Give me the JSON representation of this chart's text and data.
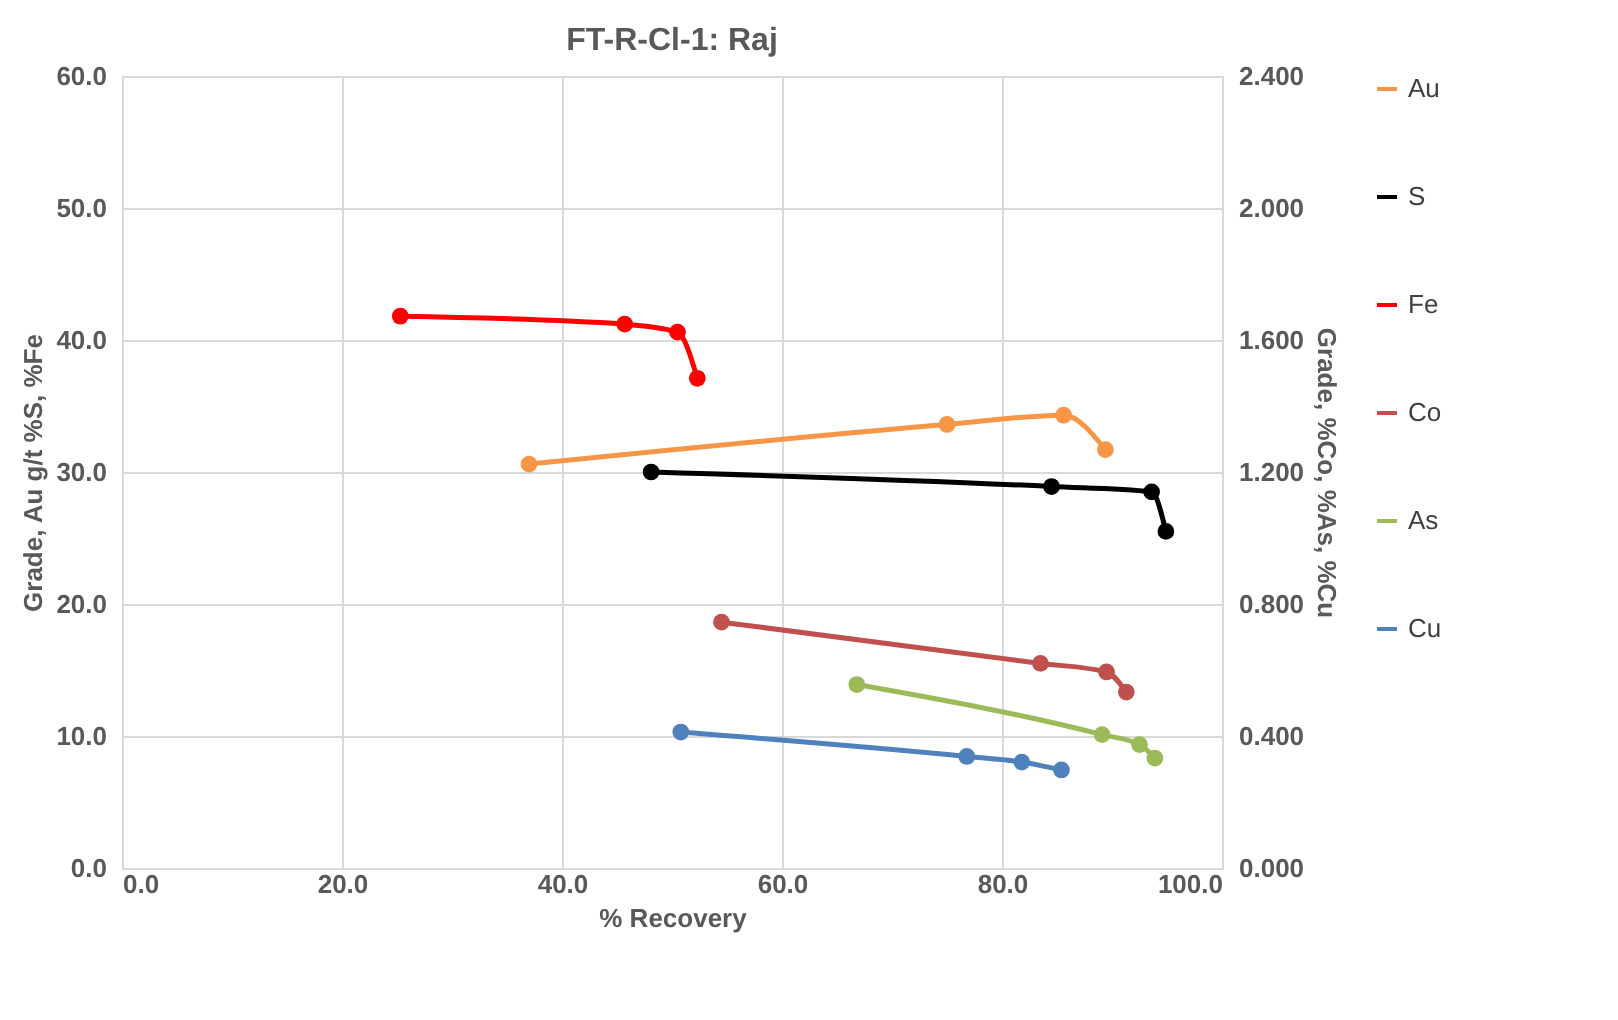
{
  "chart_data": {
    "type": "line",
    "title": "FT-R-Cl-1: Raj",
    "xlabel": "% Recovery",
    "ylabel": "Grade,  Au g/t  %S,  %Fe",
    "y2label": "Grade,  %Co,  %As,  %Cu",
    "xlim": [
      0,
      100
    ],
    "xticks": [
      {
        "value": 0,
        "label": "0.0"
      },
      {
        "value": 20,
        "label": "20.0"
      },
      {
        "value": 40,
        "label": "40.0"
      },
      {
        "value": 60,
        "label": "60.0"
      },
      {
        "value": 80,
        "label": "80.0"
      },
      {
        "value": 100,
        "label": "100.0"
      }
    ],
    "ylim": [
      0,
      60
    ],
    "yticks": [
      {
        "value": 0,
        "label": "0.0"
      },
      {
        "value": 10,
        "label": "10.0"
      },
      {
        "value": 20,
        "label": "20.0"
      },
      {
        "value": 30,
        "label": "30.0"
      },
      {
        "value": 40,
        "label": "40.0"
      },
      {
        "value": 50,
        "label": "50.0"
      },
      {
        "value": 60,
        "label": "60.0"
      }
    ],
    "y2lim": [
      0,
      2.4
    ],
    "y2ticks": [
      {
        "value": 0,
        "label": "0.000"
      },
      {
        "value": 0.4,
        "label": "0.400"
      },
      {
        "value": 0.8,
        "label": "0.800"
      },
      {
        "value": 1.2,
        "label": "1.200"
      },
      {
        "value": 1.6,
        "label": "1.600"
      },
      {
        "value": 2.0,
        "label": "2.000"
      },
      {
        "value": 2.4,
        "label": "2.400"
      }
    ],
    "grid": true,
    "legend": "right",
    "marker": "circle",
    "line_style": "solid",
    "series": [
      {
        "name": "Au",
        "color": "#f79646",
        "x": [
          37.0,
          75.0,
          85.6,
          89.4
        ],
        "values": [
          30.6,
          33.6,
          34.3,
          31.7
        ]
      },
      {
        "name": "S",
        "color": "#000000",
        "x": [
          48.1,
          84.5,
          93.6,
          94.9
        ],
        "values": [
          30.0,
          28.9,
          28.5,
          25.5
        ]
      },
      {
        "name": "Fe",
        "color": "#ff0000",
        "x": [
          25.3,
          45.7,
          50.5,
          52.3
        ],
        "values": [
          41.8,
          41.2,
          40.6,
          37.1
        ]
      },
      {
        "name": "Co",
        "color": "#c0504d",
        "axis": "y2",
        "x": [
          54.5,
          83.5,
          89.5,
          91.3
        ],
        "values": [
          0.745,
          0.62,
          0.594,
          0.533
        ]
      },
      {
        "name": "As",
        "color": "#9bbb59",
        "axis": "y2",
        "x": [
          66.8,
          89.1,
          92.5,
          93.9
        ],
        "values": [
          0.556,
          0.404,
          0.374,
          0.333
        ]
      },
      {
        "name": "Cu",
        "color": "#4f81bd",
        "axis": "y2",
        "x": [
          50.8,
          76.8,
          81.8,
          85.4
        ],
        "values": [
          0.412,
          0.338,
          0.321,
          0.297
        ]
      }
    ]
  }
}
